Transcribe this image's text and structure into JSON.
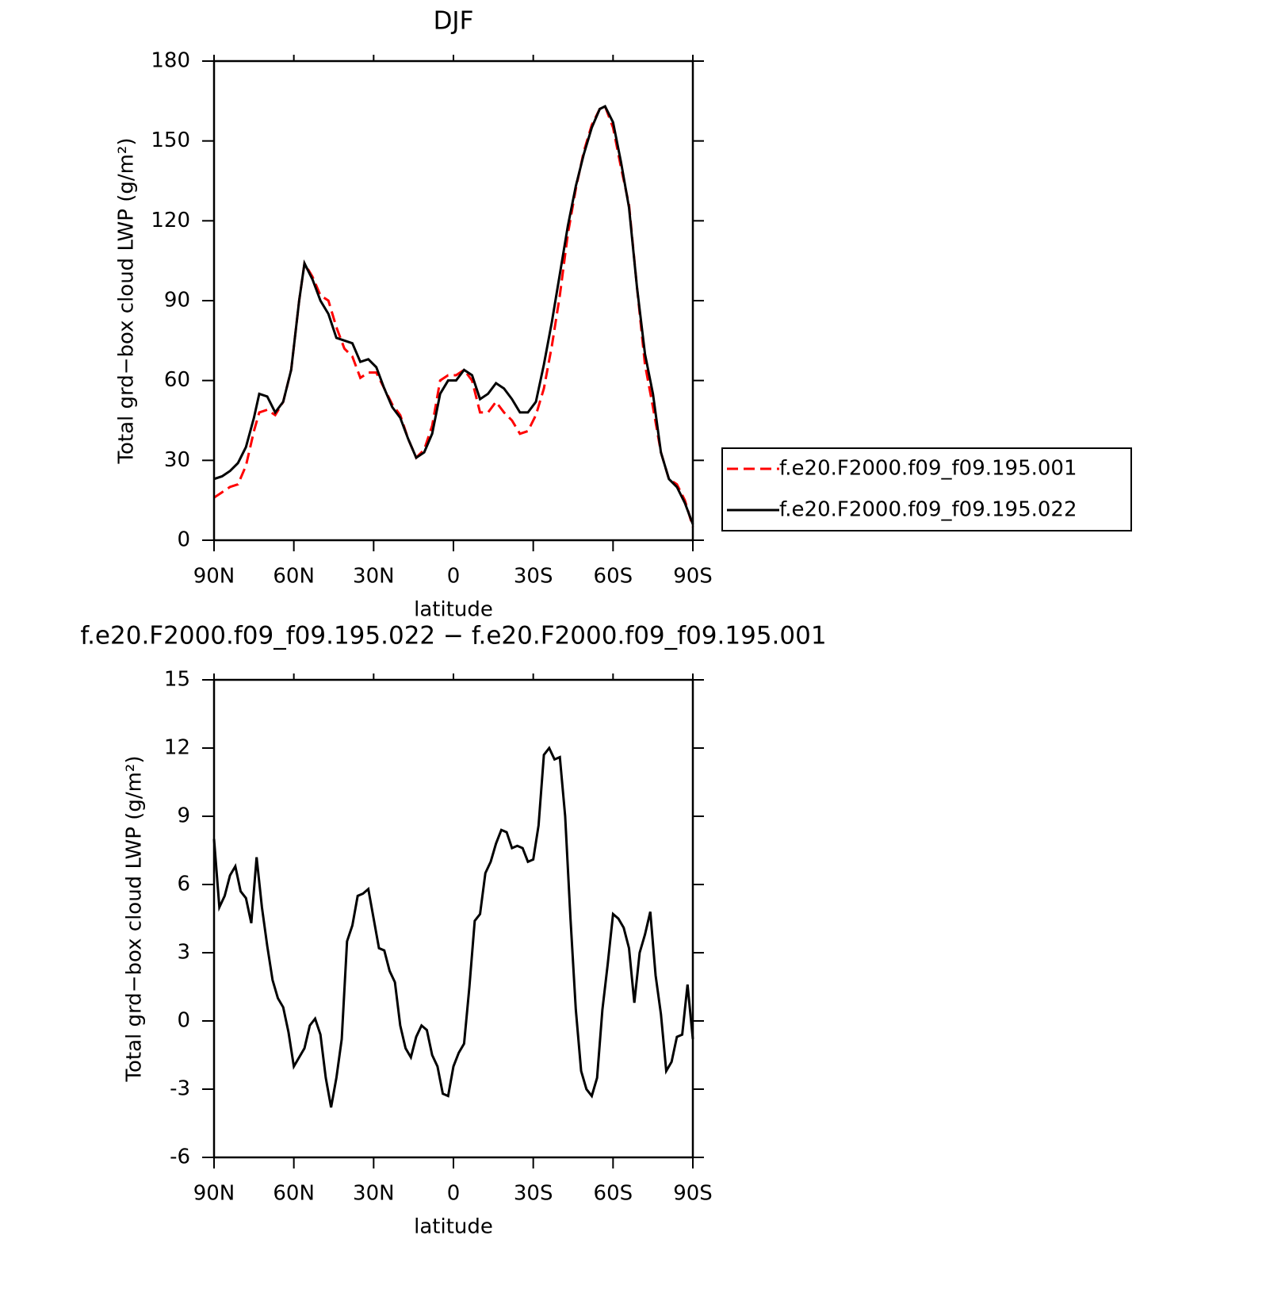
{
  "chart_data": [
    {
      "type": "line",
      "title": "DJF",
      "x_label": "latitude",
      "y_label": "Total grd−box cloud LWP (g/m²)",
      "x": [
        90,
        87,
        84,
        81,
        78,
        75,
        73,
        70,
        67,
        64,
        61,
        58,
        56,
        53,
        50,
        47,
        44,
        41,
        38,
        35,
        32,
        29,
        26,
        23,
        20,
        17,
        14,
        11,
        8,
        5,
        2,
        -1,
        -4,
        -7,
        -10,
        -13,
        -16,
        -19,
        -22,
        -25,
        -28,
        -31,
        -34,
        -37,
        -40,
        -43,
        -46,
        -49,
        -52,
        -55,
        -57,
        -60,
        -63,
        -66,
        -69,
        -72,
        -75,
        -78,
        -81,
        -84,
        -87,
        -90
      ],
      "series": [
        {
          "name": "f.e20.F2000.f09_f09.195.001",
          "color": "#ff0000",
          "style": "dashed",
          "values": [
            16,
            18,
            20,
            21,
            28,
            41,
            48,
            49,
            47,
            52,
            64,
            90,
            104,
            99,
            92,
            90,
            80,
            72,
            69,
            61,
            63,
            63,
            57,
            51,
            47,
            38,
            31,
            34,
            43,
            60,
            62,
            62,
            64,
            60,
            48,
            48,
            52,
            48,
            45,
            40,
            41,
            47,
            57,
            73,
            92,
            115,
            132,
            146,
            156,
            162,
            163,
            155,
            140,
            126,
            95,
            66,
            50,
            33,
            23,
            21,
            15,
            5
          ]
        },
        {
          "name": "f.e20.F2000.f09_f09.195.022",
          "color": "#000000",
          "style": "solid",
          "values": [
            23,
            24,
            26,
            29,
            35,
            46,
            55,
            54,
            48,
            52,
            64,
            90,
            104,
            98,
            90,
            85,
            76,
            75,
            74,
            67,
            68,
            65,
            57,
            50,
            46,
            38,
            31,
            33,
            40,
            55,
            60,
            60,
            64,
            62,
            53,
            55,
            59,
            57,
            53,
            48,
            48,
            52,
            66,
            82,
            100,
            118,
            133,
            145,
            155,
            162,
            163,
            157,
            142,
            125,
            95,
            70,
            55,
            33,
            23,
            20,
            14,
            6
          ]
        }
      ],
      "xlim": [
        90,
        -90
      ],
      "xticks": [
        {
          "value": 90,
          "label": "90N"
        },
        {
          "value": 60,
          "label": "60N"
        },
        {
          "value": 30,
          "label": "30N"
        },
        0,
        {
          "value": -30,
          "label": "30S"
        },
        {
          "value": -60,
          "label": "60S"
        },
        {
          "value": -90,
          "label": "90S"
        }
      ],
      "ylim": [
        0,
        180
      ],
      "yticks": [
        0,
        30,
        60,
        90,
        120,
        150,
        180
      ],
      "legend": "outside-right"
    },
    {
      "type": "line",
      "title": "f.e20.F2000.f09_f09.195.022 − f.e20.F2000.f09_f09.195.001",
      "x_label": "latitude",
      "y_label": "Total grd−box cloud LWP (g/m²)",
      "x": [
        90,
        88,
        86,
        84,
        82,
        80,
        78,
        76,
        74,
        72,
        70,
        68,
        66,
        64,
        62,
        60,
        58,
        56,
        54,
        52,
        50,
        48,
        46,
        44,
        42,
        40,
        38,
        36,
        34,
        32,
        30,
        28,
        26,
        24,
        22,
        20,
        18,
        16,
        14,
        12,
        10,
        8,
        6,
        4,
        2,
        0,
        -2,
        -4,
        -6,
        -8,
        -10,
        -12,
        -14,
        -16,
        -18,
        -20,
        -22,
        -24,
        -26,
        -28,
        -30,
        -32,
        -34,
        -36,
        -38,
        -40,
        -42,
        -44,
        -46,
        -48,
        -50,
        -52,
        -54,
        -56,
        -58,
        -60,
        -62,
        -64,
        -66,
        -68,
        -70,
        -72,
        -74,
        -76,
        -78,
        -80,
        -82,
        -84,
        -86,
        -88,
        -90
      ],
      "series": [
        {
          "name": "f.e20.F2000.f09_f09.195.022 − f.e20.F2000.f09_f09.195.001",
          "color": "#000000",
          "style": "solid",
          "values": [
            8,
            5,
            5.5,
            6.4,
            6.8,
            5.7,
            5.4,
            4.3,
            7.2,
            5,
            3.3,
            1.8,
            1,
            0.6,
            -0.5,
            -2,
            -1.6,
            -1.2,
            -0.2,
            0.1,
            -0.6,
            -2.5,
            -3.8,
            -2.5,
            -0.8,
            3.5,
            4.2,
            5.5,
            5.6,
            5.8,
            4.5,
            3.2,
            3.1,
            2.2,
            1.7,
            -0.2,
            -1.2,
            -1.6,
            -0.7,
            -0.2,
            -0.4,
            -1.5,
            -2,
            -3.2,
            -3.3,
            -2,
            -1.4,
            -1,
            1.5,
            4.4,
            4.7,
            6.5,
            7,
            7.8,
            8.4,
            8.3,
            7.6,
            7.7,
            7.6,
            7,
            7.1,
            8.6,
            11.7,
            12,
            11.5,
            11.6,
            9,
            4.5,
            0.5,
            -2.2,
            -3,
            -3.3,
            -2.5,
            0.5,
            2.5,
            4.7,
            4.5,
            4.1,
            3.2,
            0.8,
            3,
            3.8,
            4.8,
            2,
            0.3,
            -2.2,
            -1.8,
            -0.7,
            -0.6,
            1.6,
            -0.8
          ]
        }
      ],
      "xlim": [
        90,
        -90
      ],
      "xticks": [
        {
          "value": 90,
          "label": "90N"
        },
        {
          "value": 60,
          "label": "60N"
        },
        {
          "value": 30,
          "label": "30N"
        },
        0,
        {
          "value": -30,
          "label": "30S"
        },
        {
          "value": -60,
          "label": "60S"
        },
        {
          "value": -90,
          "label": "90S"
        }
      ],
      "ylim": [
        -6,
        15
      ],
      "yticks": [
        -6,
        -3,
        0,
        3,
        6,
        9,
        12,
        15
      ]
    }
  ]
}
